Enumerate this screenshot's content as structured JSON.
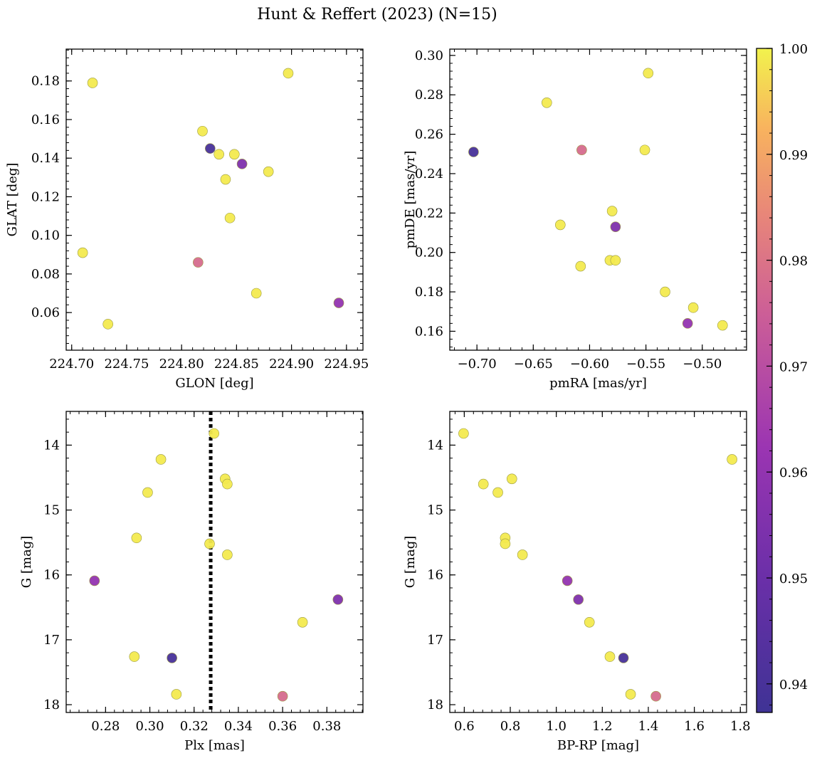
{
  "title": "Hunt & Reffert (2023) (N=15)",
  "colorbar": {
    "min": 0.9373,
    "max": 1.0,
    "ticks": [
      0.94,
      0.95,
      0.96,
      0.97,
      0.98,
      0.99,
      1.0
    ],
    "tick_labels": [
      "0.94",
      "0.95",
      "0.96",
      "0.97",
      "0.98",
      "0.99",
      "1.00"
    ],
    "colormap": "plasma"
  },
  "chart_data": [
    {
      "id": "glon-glat",
      "type": "scatter",
      "xlabel": "GLON [deg]",
      "ylabel": "GLAT [deg]",
      "xlim": [
        224.695,
        224.965
      ],
      "ylim": [
        0.0405,
        0.1965
      ],
      "invert_y": false,
      "xticks": [
        224.7,
        224.75,
        224.8,
        224.85,
        224.9,
        224.95
      ],
      "xtick_labels": [
        "224.70",
        "224.75",
        "224.80",
        "224.85",
        "224.90",
        "224.95"
      ],
      "yticks": [
        0.06,
        0.08,
        0.1,
        0.12,
        0.14,
        0.16,
        0.18
      ],
      "ytick_labels": [
        "0.06",
        "0.08",
        "0.10",
        "0.12",
        "0.14",
        "0.16",
        "0.18"
      ],
      "x": [
        224.719,
        224.897,
        224.819,
        224.826,
        224.834,
        224.848,
        224.855,
        224.84,
        224.879,
        224.844,
        224.71,
        224.815,
        224.868,
        224.943,
        224.733
      ],
      "y": [
        0.179,
        0.184,
        0.154,
        0.145,
        0.142,
        0.142,
        0.137,
        0.129,
        0.133,
        0.109,
        0.091,
        0.086,
        0.07,
        0.065,
        0.054
      ],
      "c": [
        0.999,
        0.999,
        0.999,
        0.94,
        0.999,
        0.999,
        0.955,
        0.999,
        0.999,
        0.999,
        0.999,
        0.978,
        0.999,
        0.96,
        0.999
      ]
    },
    {
      "id": "pmra-pmde",
      "type": "scatter",
      "xlabel": "pmRA [mas/yr]",
      "ylabel": "pmDE [mas/yr]",
      "xlim": [
        -0.7241,
        -0.4607
      ],
      "ylim": [
        0.1504,
        0.3032
      ],
      "invert_y": false,
      "xticks": [
        -0.7,
        -0.65,
        -0.6,
        -0.55,
        -0.5
      ],
      "xtick_labels": [
        "−0.70",
        "−0.65",
        "−0.60",
        "−0.55",
        "−0.50"
      ],
      "yticks": [
        0.16,
        0.18,
        0.2,
        0.22,
        0.24,
        0.26,
        0.28,
        0.3
      ],
      "ytick_labels": [
        "0.16",
        "0.18",
        "0.20",
        "0.22",
        "0.24",
        "0.26",
        "0.28",
        "0.30"
      ],
      "x": [
        -0.548,
        -0.638,
        -0.703,
        -0.607,
        -0.551,
        -0.58,
        -0.626,
        -0.577,
        -0.608,
        -0.582,
        -0.577,
        -0.533,
        -0.508,
        -0.513,
        -0.482
      ],
      "y": [
        0.291,
        0.276,
        0.251,
        0.252,
        0.252,
        0.221,
        0.214,
        0.213,
        0.193,
        0.196,
        0.196,
        0.18,
        0.172,
        0.164,
        0.163
      ],
      "c": [
        0.999,
        0.999,
        0.94,
        0.978,
        0.999,
        0.999,
        0.999,
        0.955,
        0.999,
        0.999,
        0.999,
        0.999,
        0.999,
        0.96,
        0.999
      ]
    },
    {
      "id": "plx-g",
      "type": "scatter",
      "xlabel": "Plx [mas]",
      "ylabel": "G [mag]",
      "xlim": [
        0.2622,
        0.3963
      ],
      "ylim": [
        13.48,
        18.12
      ],
      "invert_y": true,
      "vline": 0.3275,
      "xticks": [
        0.28,
        0.3,
        0.32,
        0.34,
        0.36,
        0.38
      ],
      "xtick_labels": [
        "0.28",
        "0.30",
        "0.32",
        "0.34",
        "0.36",
        "0.38"
      ],
      "yticks": [
        14,
        15,
        16,
        17,
        18
      ],
      "ytick_labels": [
        "14",
        "15",
        "16",
        "17",
        "18"
      ],
      "x": [
        0.329,
        0.305,
        0.334,
        0.335,
        0.299,
        0.294,
        0.327,
        0.335,
        0.275,
        0.385,
        0.369,
        0.293,
        0.31,
        0.312,
        0.36
      ],
      "y": [
        13.82,
        14.22,
        14.52,
        14.6,
        14.73,
        15.43,
        15.52,
        15.69,
        16.09,
        16.38,
        16.73,
        17.26,
        17.28,
        17.84,
        17.87
      ],
      "c": [
        0.999,
        0.999,
        0.999,
        0.999,
        0.999,
        0.999,
        0.999,
        0.999,
        0.96,
        0.955,
        0.999,
        0.999,
        0.94,
        0.999,
        0.978
      ]
    },
    {
      "id": "bprp-g",
      "type": "scatter",
      "xlabel": "BP-RP [mag]",
      "ylabel": "G [mag]",
      "xlim": [
        0.537,
        1.827
      ],
      "ylim": [
        13.48,
        18.12
      ],
      "invert_y": true,
      "xticks": [
        0.6,
        0.8,
        1.0,
        1.2,
        1.4,
        1.6,
        1.8
      ],
      "xtick_labels": [
        "0.6",
        "0.8",
        "1.0",
        "1.2",
        "1.4",
        "1.6",
        "1.8"
      ],
      "yticks": [
        14,
        15,
        16,
        17,
        18
      ],
      "ytick_labels": [
        "14",
        "15",
        "16",
        "17",
        "18"
      ],
      "x": [
        0.597,
        1.764,
        0.807,
        0.683,
        0.746,
        0.778,
        0.778,
        0.853,
        1.048,
        1.096,
        1.144,
        1.233,
        1.292,
        1.323,
        1.433
      ],
      "y": [
        13.82,
        14.22,
        14.52,
        14.6,
        14.73,
        15.43,
        15.52,
        15.69,
        16.09,
        16.38,
        16.73,
        17.26,
        17.28,
        17.84,
        17.87
      ],
      "c": [
        0.999,
        0.999,
        0.999,
        0.999,
        0.999,
        0.999,
        0.999,
        0.999,
        0.96,
        0.955,
        0.999,
        0.999,
        0.94,
        0.999,
        0.978
      ]
    }
  ]
}
